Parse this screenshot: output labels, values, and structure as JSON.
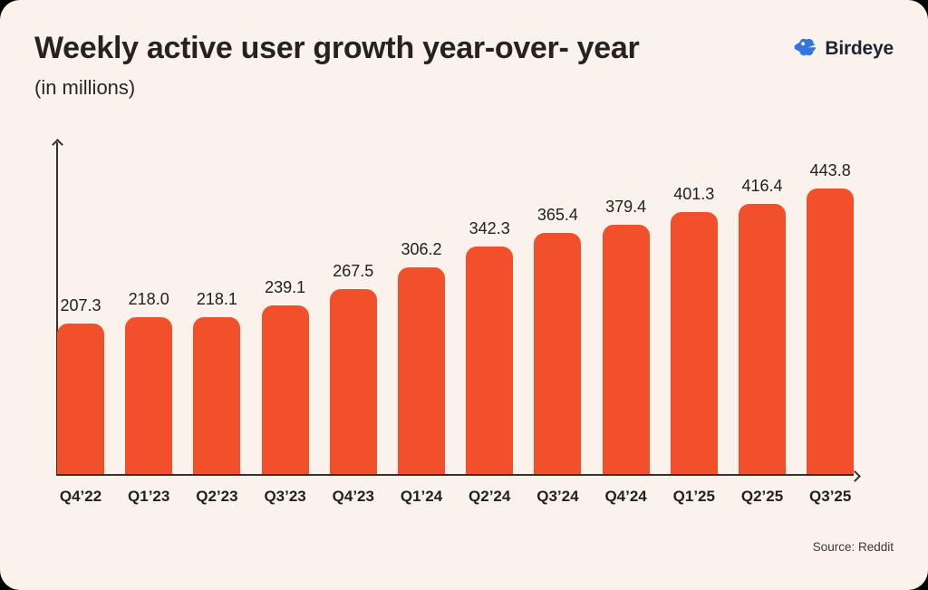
{
  "header": {
    "title": "Weekly active user growth year-over- year",
    "subtitle": "(in millions)",
    "brand": "Birdeye"
  },
  "chart_data": {
    "type": "bar",
    "orientation": "vertical",
    "title": "Weekly active user growth year-over- year",
    "subtitle": "(in millions)",
    "categories": [
      "Q4’22",
      "Q1’23",
      "Q2’23",
      "Q3’23",
      "Q4’23",
      "Q1’24",
      "Q2’24",
      "Q3’24",
      "Q4’24",
      "Q1’25",
      "Q2’25",
      "Q3’25"
    ],
    "values": [
      207.3,
      218.0,
      218.1,
      239.1,
      267.5,
      306.2,
      342.3,
      365.4,
      379.4,
      401.3,
      416.4,
      443.8
    ],
    "value_labels": [
      "207.3",
      "218.0",
      "218.1",
      "239.1",
      "267.5",
      "306.2",
      "342.3",
      "365.4",
      "379.4",
      "401.3",
      "416.4",
      "443.8"
    ],
    "xlabel": "",
    "ylabel": "",
    "gridlines": false,
    "y_axis_tick_labels_shown": false,
    "axis_arrows": true,
    "legend_shown": false,
    "bar_color": "#F1502B",
    "source": "Source: Reddit"
  },
  "footer": {
    "source": "Source: Reddit"
  },
  "colors": {
    "background": "#FAF2EB",
    "bar": "#F1502B",
    "axis": "#35312D",
    "text": "#262221",
    "brand_blue": "#3575E2",
    "brand_dark": "#1C2433"
  }
}
